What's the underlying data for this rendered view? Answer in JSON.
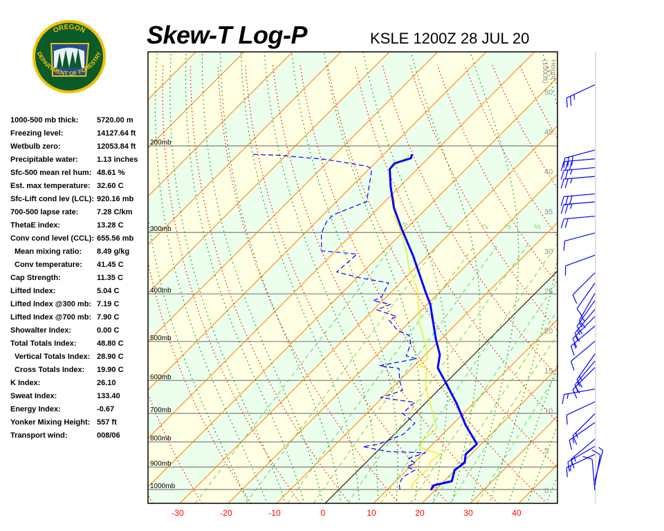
{
  "header": {
    "title": "Skew-T Log-P",
    "station_time": "KSLE 1200Z 28 JUL 20"
  },
  "logo": {
    "top_text": "OREGON",
    "bottom_text": "DEPARTMENT OF FORESTRY",
    "colors": {
      "ring": "#f2c200",
      "field": "#0b5a2a",
      "sky": "#1f4f8f"
    }
  },
  "stats": [
    {
      "label": "1000-500 mb thick:",
      "value": "5720.00 m"
    },
    {
      "label": "Freezing level:",
      "value": "14127.64 ft"
    },
    {
      "label": "Wetbulb zero:",
      "value": "12053.84 ft"
    },
    {
      "label": "Precipitable water:",
      "value": "1.13 inches"
    },
    {
      "label": "Sfc-500 mean rel hum:",
      "value": "48.61 %"
    },
    {
      "label": "Est. max temperature:",
      "value": "32.60 C"
    },
    {
      "label": "Sfc-Lift cond lev (LCL):",
      "value": "920.16 mb"
    },
    {
      "label": "700-500 lapse rate:",
      "value": "7.28 C/km"
    },
    {
      "label": "ThetaE index:",
      "value": "13.28 C"
    },
    {
      "label": "Conv cond level (CCL):",
      "value": "655.56 mb"
    },
    {
      "label": "Mean mixing ratio:",
      "value": "8.49 g/kg",
      "indent": true
    },
    {
      "label": "Conv temperature:",
      "value": "41.45 C",
      "indent": true
    },
    {
      "label": "Cap Strength:",
      "value": "11.35 C"
    },
    {
      "label": "Lifted Index:",
      "value": "5.04 C"
    },
    {
      "label": "Lifted Index @300 mb:",
      "value": "7.19 C"
    },
    {
      "label": "Lifted Index @700 mb:",
      "value": "7.90 C"
    },
    {
      "label": "Showalter Index:",
      "value": "0.00 C"
    },
    {
      "label": "Total Totals Index:",
      "value": "48.80 C"
    },
    {
      "label": "Vertical Totals Index:",
      "value": "28.90 C",
      "indent": true
    },
    {
      "label": "Cross Totals Index:",
      "value": "19.90 C",
      "indent": true
    },
    {
      "label": "K Index:",
      "value": "26.10"
    },
    {
      "label": "Sweat Index:",
      "value": "133.40"
    },
    {
      "label": "Energy Index:",
      "value": "-0.67"
    },
    {
      "label": "Yonker Mixing Height:",
      "value": "557 ft"
    },
    {
      "label": "Transport wind:",
      "value": "008/06"
    }
  ],
  "chart_data": {
    "type": "line",
    "subtype": "skew-t log-p",
    "x_axis": {
      "ticks": [
        "-30",
        "-20",
        "-10",
        "0",
        "10",
        "20",
        "30",
        "40"
      ],
      "tick_values": [
        -30,
        -20,
        -10,
        0,
        10,
        20,
        30,
        40
      ],
      "unit": "C",
      "range": [
        -35,
        46
      ],
      "tick_color": "#ff0000"
    },
    "y_axis": {
      "scale": "log",
      "range_mb": [
        1067,
        129
      ],
      "levels": [
        {
          "value": 200,
          "label": "200mb"
        },
        {
          "value": 300,
          "label": "300mb"
        },
        {
          "value": 400,
          "label": "400mb"
        },
        {
          "value": 500,
          "label": "500mb"
        },
        {
          "value": 600,
          "label": "600mb"
        },
        {
          "value": 700,
          "label": "700mb"
        },
        {
          "value": 800,
          "label": "800mb"
        },
        {
          "value": 900,
          "label": "900mb"
        },
        {
          "value": 1000,
          "label": "1000mb"
        }
      ]
    },
    "height_axis": {
      "label": "Height",
      "unit_label": "(1000ft)",
      "ticks": [
        "0",
        "5",
        "10",
        "15",
        "20",
        "25",
        "30",
        "35",
        "40",
        "45",
        "50"
      ],
      "tick_values": [
        0,
        5,
        10,
        15,
        20,
        25,
        30,
        35,
        40,
        45,
        50
      ]
    },
    "mixing_ratio_lines": {
      "labels": [
        ".4",
        "1",
        "2",
        "3",
        "5"
      ],
      "values": [
        0.4,
        1,
        2,
        3,
        5
      ]
    },
    "colors": {
      "isotherm": "#ff8000",
      "dry_adiabat": "#ff0000",
      "moist_adiabat": "#008000",
      "mixing_ratio": "#66cc66",
      "band_a": "#ffffe4",
      "band_b": "#ecfeec",
      "zero_isotherm": "#000000"
    },
    "series": [
      {
        "color": "#0000ff",
        "style": "solid-thick",
        "points": [
          [
            1003,
            19.1
          ],
          [
            981,
            18.7
          ],
          [
            962,
            21.6
          ],
          [
            913,
            19.9
          ],
          [
            881,
            20.4
          ],
          [
            848,
            18.9
          ],
          [
            808,
            19.1
          ],
          [
            740,
            12.9
          ],
          [
            667,
            6.4
          ],
          [
            600,
            -0.7
          ],
          [
            566,
            -4.7
          ],
          [
            532,
            -7.0
          ],
          [
            494,
            -11.1
          ],
          [
            420,
            -19.4
          ],
          [
            400,
            -22.4
          ],
          [
            335,
            -32.9
          ],
          [
            294,
            -41.1
          ],
          [
            267,
            -46.9
          ],
          [
            242,
            -51.9
          ],
          [
            223,
            -55.7
          ],
          [
            217,
            -55.9
          ],
          [
            212,
            -53.6
          ],
          [
            208,
            -54.1
          ]
        ]
      },
      {
        "color": "#0000ff",
        "style": "dashed",
        "points": [
          [
            1000,
            12.6
          ],
          [
            974,
            11.3
          ],
          [
            943,
            10.6
          ],
          [
            913,
            11.7
          ],
          [
            899,
            9.3
          ],
          [
            884,
            10.3
          ],
          [
            864,
            7.9
          ],
          [
            842,
            10.3
          ],
          [
            837,
            2.4
          ],
          [
            818,
            -3.9
          ],
          [
            808,
            -1.1
          ],
          [
            772,
            1.9
          ],
          [
            733,
            2.0
          ],
          [
            700,
            -2.6
          ],
          [
            665,
            -2.3
          ],
          [
            650,
            -10.4
          ],
          [
            629,
            -7.3
          ],
          [
            600,
            -10.0
          ],
          [
            567,
            -12.6
          ],
          [
            560,
            -17.3
          ],
          [
            542,
            -11.0
          ],
          [
            535,
            -13.7
          ],
          [
            505,
            -15.3
          ],
          [
            486,
            -17.3
          ],
          [
            475,
            -20.7
          ],
          [
            452,
            -24.7
          ],
          [
            445,
            -23.7
          ],
          [
            431,
            -29.3
          ],
          [
            420,
            -27.6
          ],
          [
            413,
            -32.0
          ],
          [
            407,
            -30.9
          ],
          [
            380,
            -32.4
          ],
          [
            371,
            -39.4
          ],
          [
            361,
            -45.4
          ],
          [
            332,
            -44.9
          ],
          [
            327,
            -52.9
          ],
          [
            301,
            -56.6
          ],
          [
            285,
            -57.9
          ],
          [
            276,
            -57.9
          ],
          [
            264,
            -54.9
          ],
          [
            260,
            -53.7
          ],
          [
            223,
            -59.4
          ],
          [
            220,
            -61.0
          ],
          [
            216,
            -66.6
          ],
          [
            213,
            -71.0
          ],
          [
            209,
            -81.4
          ],
          [
            208,
            -87.4
          ]
        ]
      },
      {
        "color": "#e8e800",
        "style": "thin",
        "points": [
          [
            1000,
            15.0
          ],
          [
            974,
            14.1
          ],
          [
            934,
            13.9
          ],
          [
            913,
            14.3
          ],
          [
            876,
            13.1
          ],
          [
            848,
            13.7
          ],
          [
            821,
            8.0
          ],
          [
            795,
            7.0
          ],
          [
            752,
            7.7
          ],
          [
            721,
            5.3
          ],
          [
            676,
            1.7
          ],
          [
            640,
            -1.4
          ],
          [
            613,
            -3.7
          ],
          [
            567,
            -6.9
          ],
          [
            558,
            -9.3
          ],
          [
            544,
            -8.6
          ],
          [
            518,
            -10.9
          ],
          [
            505,
            -12.3
          ],
          [
            452,
            -18.6
          ],
          [
            445,
            -18.9
          ],
          [
            424,
            -21.4
          ],
          [
            390,
            -25.4
          ],
          [
            357,
            -30.9
          ],
          [
            327,
            -35.4
          ],
          [
            307,
            -38.9
          ],
          [
            278,
            -45.0
          ],
          [
            258,
            -48.3
          ],
          [
            242,
            -52.1
          ],
          [
            222,
            -55.7
          ],
          [
            208,
            -54.3
          ]
        ]
      }
    ],
    "winds": [
      {
        "height_kft": 50.9,
        "dir": 245,
        "speed_kt": 25
      },
      {
        "height_kft": 42.7,
        "dir": 255,
        "speed_kt": 30
      },
      {
        "height_kft": 41.6,
        "dir": 265,
        "speed_kt": 30
      },
      {
        "height_kft": 40.5,
        "dir": 265,
        "speed_kt": 25
      },
      {
        "height_kft": 39.4,
        "dir": 265,
        "speed_kt": 25
      },
      {
        "height_kft": 37.2,
        "dir": 265,
        "speed_kt": 30
      },
      {
        "height_kft": 36.2,
        "dir": 265,
        "speed_kt": 25
      },
      {
        "height_kft": 34.4,
        "dir": 265,
        "speed_kt": 20
      },
      {
        "height_kft": 32.3,
        "dir": 255,
        "speed_kt": 10
      },
      {
        "height_kft": 29.5,
        "dir": 250,
        "speed_kt": 10
      },
      {
        "height_kft": 27.3,
        "dir": 225,
        "speed_kt": 10
      },
      {
        "height_kft": 26.0,
        "dir": 215,
        "speed_kt": 10
      },
      {
        "height_kft": 24.7,
        "dir": 210,
        "speed_kt": 15
      },
      {
        "height_kft": 23.8,
        "dir": 215,
        "speed_kt": 15
      },
      {
        "height_kft": 22.7,
        "dir": 220,
        "speed_kt": 15
      },
      {
        "height_kft": 21.8,
        "dir": 225,
        "speed_kt": 15
      },
      {
        "height_kft": 20.6,
        "dir": 230,
        "speed_kt": 15
      },
      {
        "height_kft": 18.7,
        "dir": 230,
        "speed_kt": 10
      },
      {
        "height_kft": 17.1,
        "dir": 215,
        "speed_kt": 15
      },
      {
        "height_kft": 16.2,
        "dir": 220,
        "speed_kt": 15
      },
      {
        "height_kft": 15.4,
        "dir": 225,
        "speed_kt": 15
      },
      {
        "height_kft": 12.7,
        "dir": 260,
        "speed_kt": 15
      },
      {
        "height_kft": 11.1,
        "dir": 245,
        "speed_kt": 10
      },
      {
        "height_kft": 9.6,
        "dir": 225,
        "speed_kt": 15
      },
      {
        "height_kft": 8.5,
        "dir": 235,
        "speed_kt": 15
      },
      {
        "height_kft": 6.4,
        "dir": 230,
        "speed_kt": 15
      },
      {
        "height_kft": 5.5,
        "dir": 240,
        "speed_kt": 15
      },
      {
        "height_kft": 4.5,
        "dir": 245,
        "speed_kt": 15
      },
      {
        "height_kft": 0.0,
        "dir": 355,
        "speed_kt": 10
      },
      {
        "height_kft": 0.6,
        "dir": 10,
        "speed_kt": 10
      },
      {
        "height_kft": 1.2,
        "dir": 15,
        "speed_kt": 5
      }
    ]
  }
}
